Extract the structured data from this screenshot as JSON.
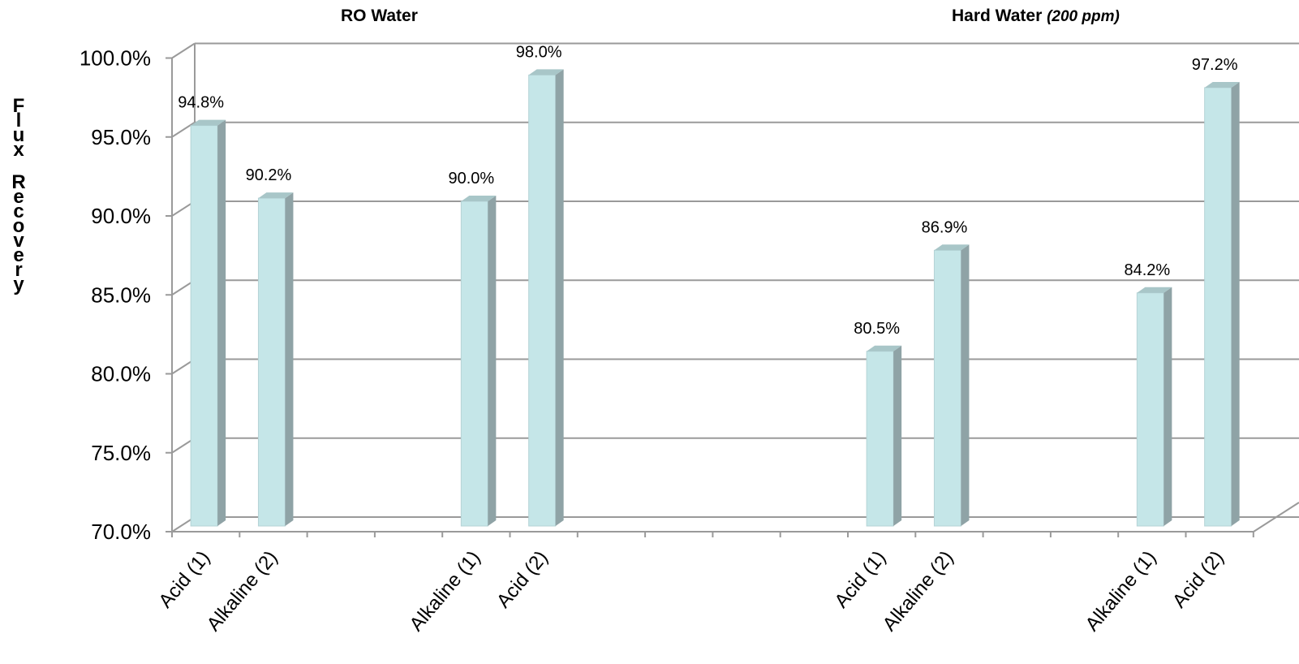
{
  "chart_data": {
    "type": "bar",
    "groups": [
      {
        "title": "RO Water",
        "subtitle": ""
      },
      {
        "title": "Hard Water",
        "subtitle": "(200 ppm)"
      }
    ],
    "ylabel": "Flux Recovery",
    "ylim": [
      70,
      100
    ],
    "yticks": [
      "70.0%",
      "75.0%",
      "80.0%",
      "85.0%",
      "90.0%",
      "95.0%",
      "100.0%"
    ],
    "grid": true,
    "bar_color": "#c5e6e8",
    "bar_side_color": "#8fa3a6",
    "bar_top_color": "#a8c6c8",
    "bars": [
      {
        "group": "RO Water",
        "label": "Acid (1)",
        "value": 94.8,
        "data_label": "94.8%"
      },
      {
        "group": "RO Water",
        "label": "Alkaline (2)",
        "value": 90.2,
        "data_label": "90.2%"
      },
      {
        "group": "RO Water",
        "label": "Alkaline (1)",
        "value": 90.0,
        "data_label": "90.0%"
      },
      {
        "group": "RO Water",
        "label": "Acid (2)",
        "value": 98.0,
        "data_label": "98.0%"
      },
      {
        "group": "Hard Water",
        "label": "Acid (1)",
        "value": 80.5,
        "data_label": "80.5%"
      },
      {
        "group": "Hard Water",
        "label": "Alkaline (2)",
        "value": 86.9,
        "data_label": "86.9%"
      },
      {
        "group": "Hard Water",
        "label": "Alkaline (1)",
        "value": 84.2,
        "data_label": "84.2%"
      },
      {
        "group": "Hard Water",
        "label": "Acid (2)",
        "value": 97.2,
        "data_label": "97.2%"
      }
    ]
  }
}
